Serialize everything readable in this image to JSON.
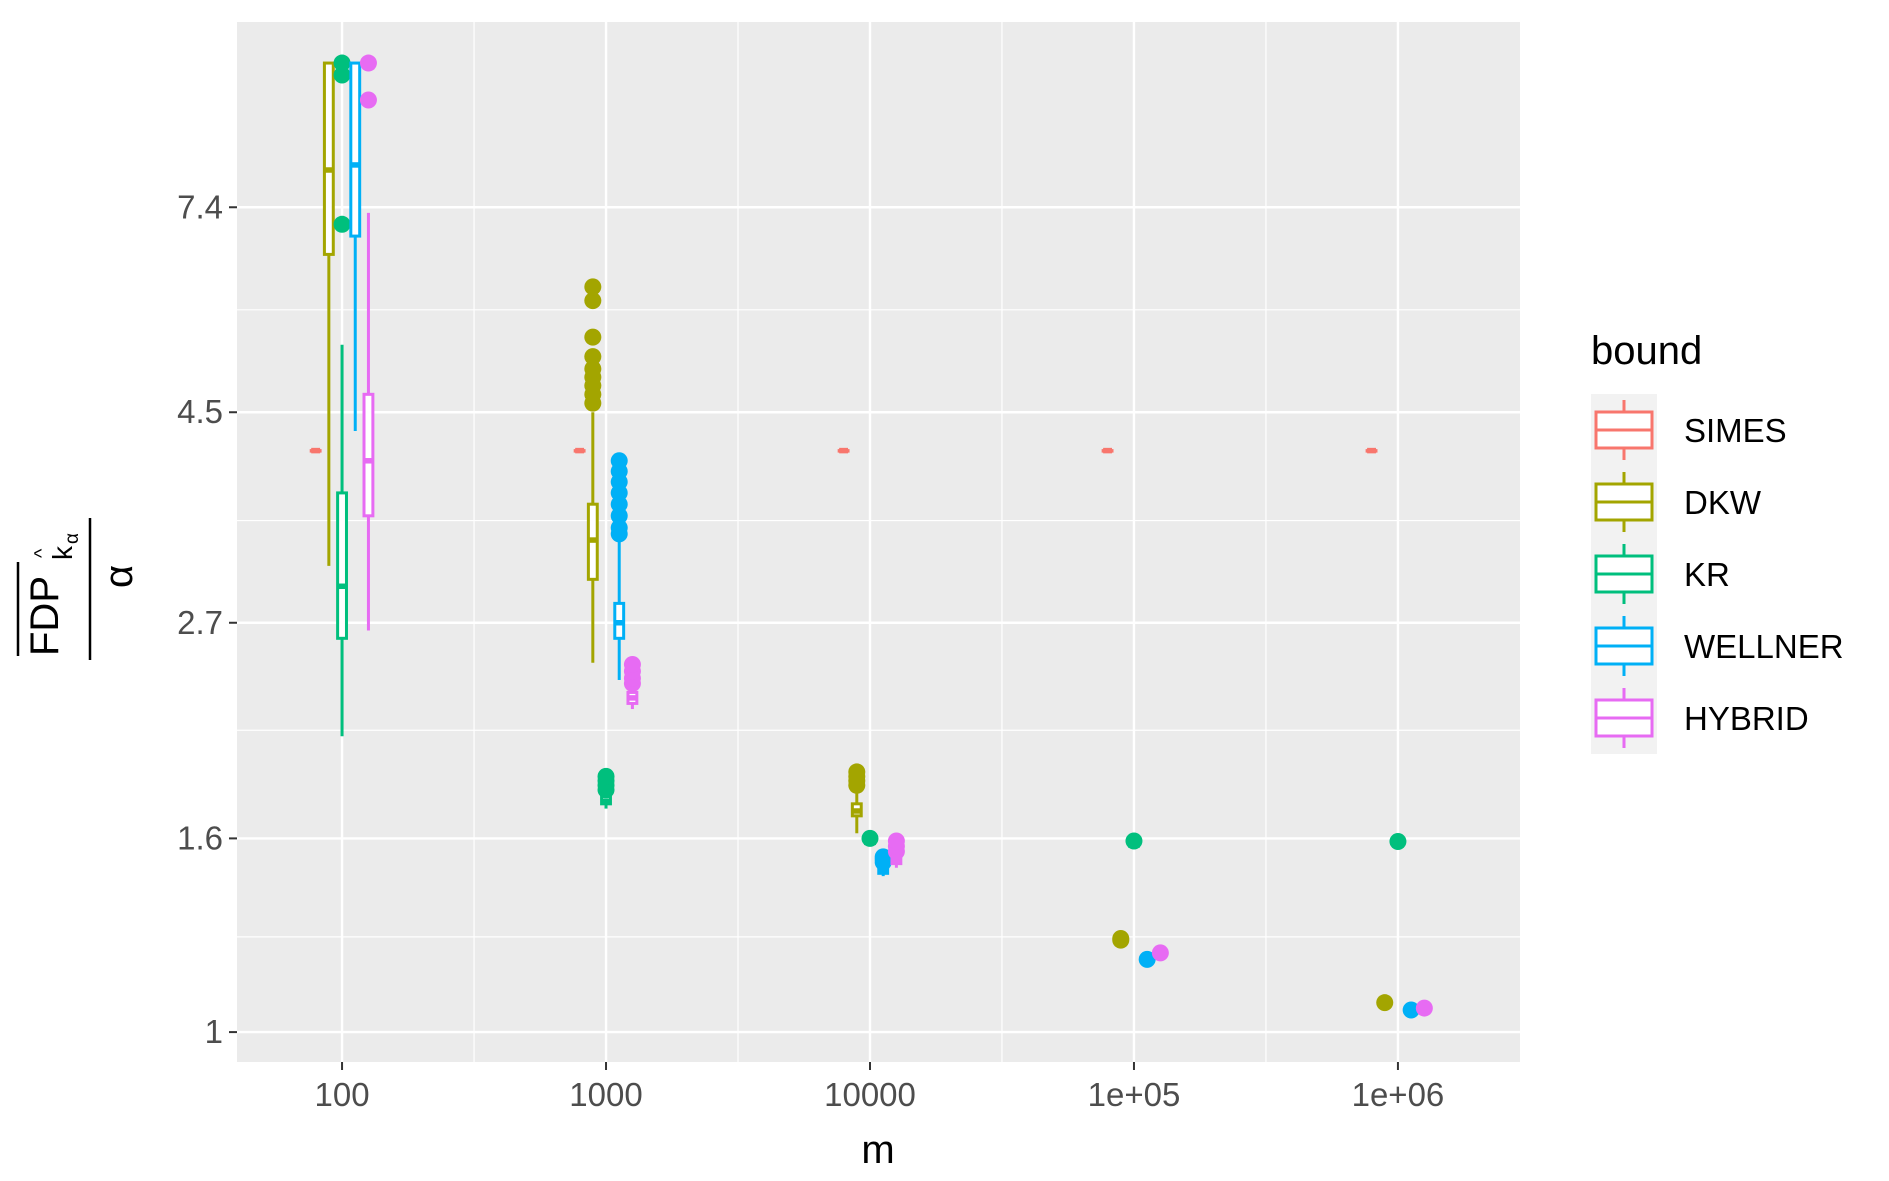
{
  "chart_data": {
    "type": "boxplot",
    "xlabel": "m",
    "ylabel": {
      "numerator": "FDP",
      "subscript": "k",
      "hat": "^",
      "sub_subscript": "α",
      "denominator": "α"
    },
    "x_scale": "log10",
    "y_scale": "log",
    "x_ticks": [
      {
        "value": 100,
        "label": "100"
      },
      {
        "value": 1000,
        "label": "1000"
      },
      {
        "value": 10000,
        "label": "10000"
      },
      {
        "value": 100000,
        "label": "1e+05"
      },
      {
        "value": 1000000,
        "label": "1e+06"
      }
    ],
    "y_ticks": [
      {
        "value": 1,
        "label": "1"
      },
      {
        "value": 1.6,
        "label": "1.6"
      },
      {
        "value": 2.7,
        "label": "2.7"
      },
      {
        "value": 4.5,
        "label": "4.5"
      },
      {
        "value": 7.4,
        "label": "7.4"
      }
    ],
    "y_minor": [
      1.26,
      2.08,
      3.46,
      5.77
    ],
    "xlim": [
      40,
      2900000
    ],
    "ylim": [
      0.93,
      11.6
    ],
    "grid": true,
    "legend_position": "right",
    "legend": {
      "title": "bound",
      "entries": [
        {
          "name": "SIMES",
          "color": "#F8766D"
        },
        {
          "name": "DKW",
          "color": "#A3A500"
        },
        {
          "name": "KR",
          "color": "#00BF7D"
        },
        {
          "name": "WELLNER",
          "color": "#00B0F6"
        },
        {
          "name": "HYBRID",
          "color": "#E76BF3"
        }
      ]
    },
    "series": [
      {
        "name": "SIMES",
        "color": "#F8766D",
        "boxes": [
          {
            "m": 100,
            "q1": 4.1,
            "median": 4.1,
            "q3": 4.1,
            "lower": 4.1,
            "upper": 4.1,
            "outliers": []
          },
          {
            "m": 1000,
            "q1": 4.1,
            "median": 4.1,
            "q3": 4.1,
            "lower": 4.1,
            "upper": 4.1,
            "outliers": []
          },
          {
            "m": 10000,
            "q1": 4.1,
            "median": 4.1,
            "q3": 4.1,
            "lower": 4.1,
            "upper": 4.1,
            "outliers": []
          },
          {
            "m": 100000,
            "q1": 4.1,
            "median": 4.1,
            "q3": 4.1,
            "lower": 4.1,
            "upper": 4.1,
            "outliers": []
          },
          {
            "m": 1000000,
            "q1": 4.1,
            "median": 4.1,
            "q3": 4.1,
            "lower": 4.1,
            "upper": 4.1,
            "outliers": []
          }
        ]
      },
      {
        "name": "DKW",
        "color": "#A3A500",
        "boxes": [
          {
            "m": 100,
            "q1": 6.6,
            "median": 8.1,
            "q3": 10.5,
            "lower": 3.1,
            "upper": 10.5,
            "outliers": []
          },
          {
            "m": 1000,
            "q1": 3.0,
            "median": 3.3,
            "q3": 3.6,
            "lower": 2.45,
            "upper": 4.5,
            "outliers": [
              4.6,
              4.7,
              4.8,
              4.9,
              5.0,
              5.15,
              5.4,
              5.9,
              6.1
            ]
          },
          {
            "m": 10000,
            "q1": 1.69,
            "median": 1.71,
            "q3": 1.74,
            "lower": 1.62,
            "upper": 1.8,
            "outliers": [
              1.82,
              1.84,
              1.86,
              1.88
            ]
          },
          {
            "m": 100000,
            "q1": 1.236,
            "median": 1.24,
            "q3": 1.245,
            "lower": 1.232,
            "upper": 1.248,
            "outliers": [
              1.25,
              1.255
            ]
          },
          {
            "m": 1000000,
            "q1": 1.063,
            "median": 1.066,
            "q3": 1.069,
            "lower": 1.06,
            "upper": 1.071,
            "outliers": [
              1.074
            ]
          }
        ]
      },
      {
        "name": "KR",
        "color": "#00BF7D",
        "boxes": [
          {
            "m": 100,
            "q1": 2.6,
            "median": 2.95,
            "q3": 3.7,
            "lower": 2.05,
            "upper": 5.3,
            "outliers": [
              7.1,
              10.2,
              10.5
            ]
          },
          {
            "m": 1000,
            "q1": 1.74,
            "median": 1.75,
            "q3": 1.77,
            "lower": 1.72,
            "upper": 1.78,
            "outliers": [
              1.8,
              1.82,
              1.84,
              1.86
            ]
          },
          {
            "m": 10000,
            "q1": 1.58,
            "median": 1.585,
            "q3": 1.59,
            "lower": 1.575,
            "upper": 1.595,
            "outliers": [
              1.6
            ]
          },
          {
            "m": 100000,
            "q1": 1.57,
            "median": 1.575,
            "q3": 1.58,
            "lower": 1.565,
            "upper": 1.585,
            "outliers": [
              1.59
            ]
          },
          {
            "m": 1000000,
            "q1": 1.57,
            "median": 1.573,
            "q3": 1.578,
            "lower": 1.565,
            "upper": 1.583,
            "outliers": [
              1.588
            ]
          }
        ]
      },
      {
        "name": "WELLNER",
        "color": "#00B0F6",
        "boxes": [
          {
            "m": 100,
            "q1": 6.9,
            "median": 8.2,
            "q3": 10.5,
            "lower": 4.3,
            "upper": 10.5,
            "outliers": []
          },
          {
            "m": 1000,
            "q1": 2.6,
            "median": 2.7,
            "q3": 2.83,
            "lower": 2.35,
            "upper": 3.3,
            "outliers": [
              3.35,
              3.4,
              3.5,
              3.6,
              3.7,
              3.8,
              3.9,
              4.0
            ]
          },
          {
            "m": 10000,
            "q1": 1.47,
            "median": 1.48,
            "q3": 1.49,
            "lower": 1.46,
            "upper": 1.5,
            "outliers": [
              1.51,
              1.52,
              1.53
            ]
          },
          {
            "m": 100000,
            "q1": 1.182,
            "median": 1.185,
            "q3": 1.188,
            "lower": 1.18,
            "upper": 1.19,
            "outliers": [
              1.193
            ]
          },
          {
            "m": 1000000,
            "q1": 1.046,
            "median": 1.048,
            "q3": 1.05,
            "lower": 1.044,
            "upper": 1.052,
            "outliers": [
              1.055
            ]
          }
        ]
      },
      {
        "name": "HYBRID",
        "color": "#E76BF3",
        "boxes": [
          {
            "m": 100,
            "q1": 3.5,
            "median": 4.0,
            "q3": 4.7,
            "lower": 2.65,
            "upper": 7.3,
            "outliers": [
              9.6,
              10.5
            ]
          },
          {
            "m": 1000,
            "q1": 2.22,
            "median": 2.25,
            "q3": 2.28,
            "lower": 2.19,
            "upper": 2.3,
            "outliers": [
              2.33,
              2.36,
              2.4,
              2.44
            ]
          },
          {
            "m": 10000,
            "q1": 1.505,
            "median": 1.515,
            "q3": 1.525,
            "lower": 1.49,
            "upper": 1.535,
            "outliers": [
              1.55,
              1.57,
              1.59
            ]
          },
          {
            "m": 100000,
            "q1": 1.2,
            "median": 1.203,
            "q3": 1.206,
            "lower": 1.198,
            "upper": 1.208,
            "outliers": [
              1.212
            ]
          },
          {
            "m": 1000000,
            "q1": 1.051,
            "median": 1.053,
            "q3": 1.055,
            "lower": 1.049,
            "upper": 1.057,
            "outliers": [
              1.06
            ]
          }
        ]
      }
    ]
  }
}
